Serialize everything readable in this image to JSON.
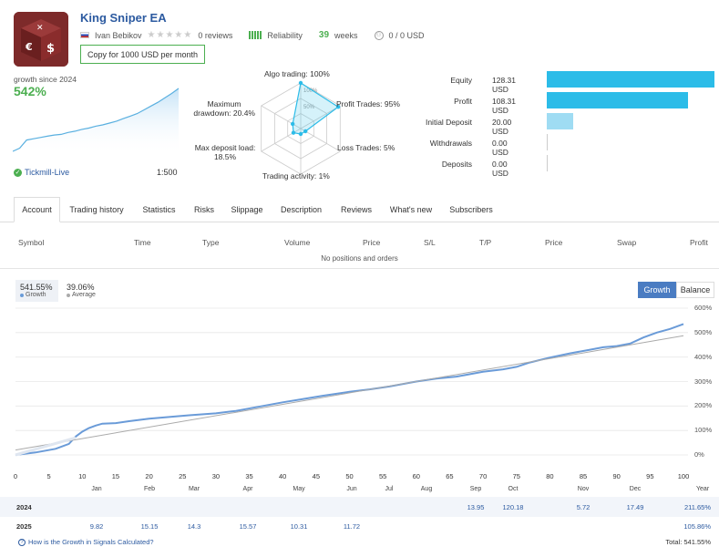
{
  "header": {
    "title": "King Sniper EA",
    "author": "Ivan Bebikov",
    "reviews": "0 reviews",
    "reliability": "Reliability",
    "weeks_num": "39",
    "weeks_label": "weeks",
    "subscribers_funds": "0 / 0 USD",
    "copy_button": "Copy for 1000 USD per month"
  },
  "growth": {
    "label": "growth since 2024",
    "value": "542%",
    "broker": "Tickmill-Live",
    "leverage": "1:500"
  },
  "radar": {
    "labels": {
      "algo": "Algo trading: 100%",
      "profit_trades": "Profit Trades: 95%",
      "loss_trades": "Loss Trades: 5%",
      "activity": "Trading activity: 1%",
      "max_deposit_1": "Max deposit load:",
      "max_deposit_2": "18.5%",
      "max_dd_1": "Maximum",
      "max_dd_2": "drawdown: 20.4%"
    },
    "ring_labels": [
      "100%",
      "50%"
    ],
    "values": [
      100,
      95,
      5,
      1,
      18.5,
      20.4
    ]
  },
  "stats": [
    {
      "label": "Equity",
      "value": "128.31 USD",
      "fraction": 1.0,
      "color": "#2cbce8"
    },
    {
      "label": "Profit",
      "value": "108.31 USD",
      "fraction": 0.844,
      "color": "#2cbce8"
    },
    {
      "label": "Initial Deposit",
      "value": "20.00 USD",
      "fraction": 0.156,
      "color": "#9fdcf3"
    },
    {
      "label": "Withdrawals",
      "value": "0.00 USD",
      "fraction": 0,
      "color": "#2cbce8"
    },
    {
      "label": "Deposits",
      "value": "0.00 USD",
      "fraction": 0,
      "color": "#2cbce8"
    }
  ],
  "tabs": [
    "Account",
    "Trading history",
    "Statistics",
    "Risks",
    "Slippage",
    "Description",
    "Reviews",
    "What's new",
    "Subscribers"
  ],
  "table": {
    "headers": [
      "Symbol",
      "Time",
      "Type",
      "Volume",
      "Price",
      "S/L",
      "T/P",
      "Price",
      "Swap",
      "Profit"
    ],
    "empty": "No positions and orders"
  },
  "chart_header": {
    "growth_value": "541.55%",
    "growth_name": "Growth",
    "average_value": "39.06%",
    "average_name": "Average",
    "btn_growth": "Growth",
    "btn_balance": "Balance"
  },
  "chart_data": {
    "type": "line",
    "x_ticks": [
      "0",
      "5",
      "10",
      "15",
      "20",
      "25",
      "30",
      "35",
      "40",
      "45",
      "50",
      "55",
      "60",
      "65",
      "70",
      "75",
      "80",
      "85",
      "90",
      "95",
      "100"
    ],
    "y_ticks": [
      "0%",
      "100%",
      "200%",
      "300%",
      "400%",
      "500%",
      "600%"
    ],
    "ylim": [
      -40,
      620
    ],
    "xlim": [
      0,
      100
    ],
    "series": [
      {
        "name": "Growth",
        "color": "#6a9bd8",
        "x": [
          0,
          3,
          6,
          8,
          9,
          10,
          11,
          12,
          13,
          15,
          17,
          20,
          23,
          26,
          30,
          33,
          36,
          40,
          43,
          46,
          50,
          53,
          56,
          60,
          63,
          66,
          70,
          73,
          75,
          77,
          80,
          83,
          86,
          88,
          90,
          92,
          94,
          96,
          98,
          100
        ],
        "y": [
          0,
          10,
          25,
          45,
          75,
          95,
          110,
          120,
          128,
          130,
          138,
          148,
          155,
          162,
          170,
          180,
          195,
          215,
          228,
          242,
          258,
          268,
          280,
          300,
          312,
          320,
          340,
          350,
          360,
          378,
          398,
          415,
          430,
          440,
          445,
          455,
          480,
          500,
          515,
          535
        ]
      },
      {
        "name": "Average",
        "color": "#aaaaaa",
        "x": [
          0,
          100
        ],
        "y": [
          20,
          487
        ]
      }
    ],
    "months": [
      "Jan",
      "Feb",
      "Mar",
      "Apr",
      "May",
      "Jun",
      "Jul",
      "Aug",
      "Sep",
      "Oct",
      "Nov",
      "Dec"
    ],
    "year_label": "Year"
  },
  "years": [
    {
      "year": "2024",
      "values": [
        "",
        "",
        "",
        "",
        "",
        "",
        "",
        "",
        "13.95",
        "120.18",
        "5.72",
        "17.49"
      ],
      "total": "211.65%"
    },
    {
      "year": "2025",
      "values": [
        "9.82",
        "15.15",
        "14.3",
        "15.57",
        "10.31",
        "11.72",
        "",
        "",
        "",
        "",
        "",
        ""
      ],
      "total": "105.86%"
    }
  ],
  "footer": {
    "link": "How is the Growth in Signals Calculated?",
    "total": "Total: 541.55%"
  },
  "mini_chart": {
    "points": [
      0,
      5,
      18,
      20,
      22,
      24,
      26,
      27,
      30,
      32,
      35,
      37,
      40,
      42,
      45,
      48,
      52,
      56,
      60,
      66,
      72,
      78,
      85,
      92,
      100
    ]
  }
}
